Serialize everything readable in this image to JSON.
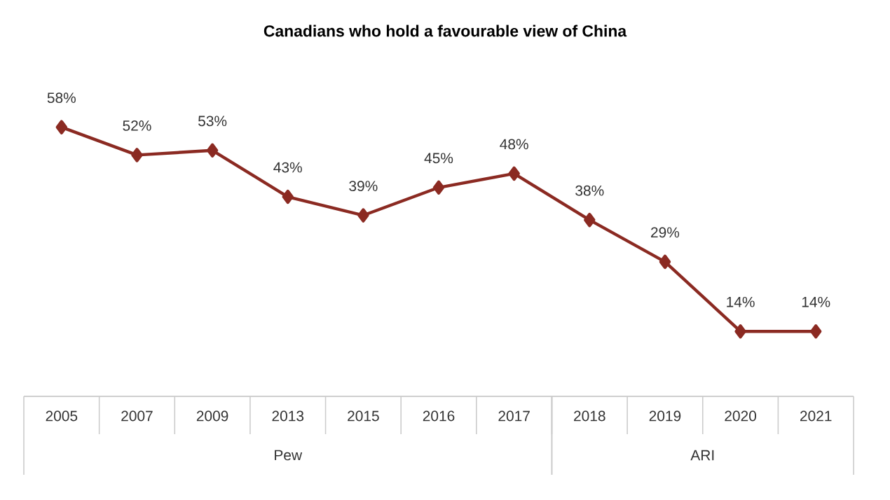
{
  "chart_data": {
    "type": "line",
    "title": "Canadians who hold a favourable view of China",
    "categories": [
      "2005",
      "2007",
      "2009",
      "2013",
      "2015",
      "2016",
      "2017",
      "2018",
      "2019",
      "2020",
      "2021"
    ],
    "series": [
      {
        "color": "#8b2a22",
        "values": [
          58,
          52,
          53,
          43,
          39,
          45,
          48,
          38,
          29,
          14,
          14
        ],
        "value_labels": [
          "58%",
          "52%",
          "53%",
          "43%",
          "39%",
          "45%",
          "48%",
          "38%",
          "29%",
          "14%",
          "14%"
        ]
      }
    ],
    "marker": "diamond",
    "line_style": "solid",
    "annotations": [
      "Pew",
      "ARI"
    ]
  }
}
